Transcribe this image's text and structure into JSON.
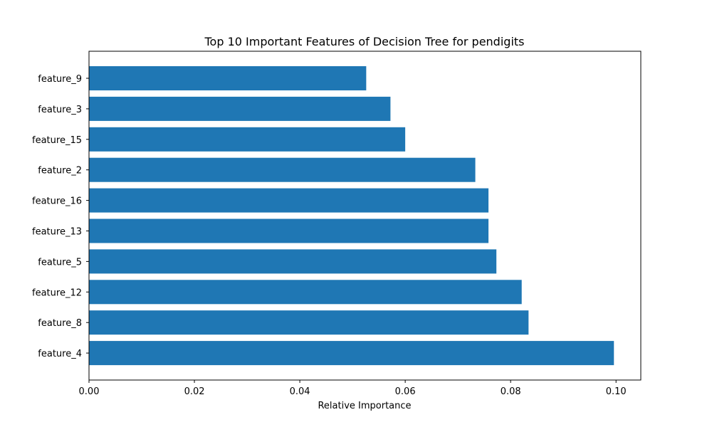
{
  "chart_data": {
    "type": "bar",
    "orientation": "horizontal",
    "title": "Top 10 Important Features of Decision Tree for pendigits",
    "xlabel": "Relative Importance",
    "ylabel": "",
    "categories": [
      "feature_9",
      "feature_3",
      "feature_15",
      "feature_2",
      "feature_16",
      "feature_13",
      "feature_5",
      "feature_12",
      "feature_8",
      "feature_4"
    ],
    "values": [
      0.0526,
      0.0572,
      0.06,
      0.0733,
      0.0758,
      0.0758,
      0.0773,
      0.0821,
      0.0834,
      0.0996
    ],
    "xlim": [
      0,
      0.1047
    ],
    "xticks": [
      0.0,
      0.02,
      0.04,
      0.06,
      0.08,
      0.1
    ],
    "xtick_labels": [
      "0.00",
      "0.02",
      "0.04",
      "0.06",
      "0.08",
      "0.10"
    ],
    "grid": false,
    "bar_color": "#1f77b4"
  }
}
